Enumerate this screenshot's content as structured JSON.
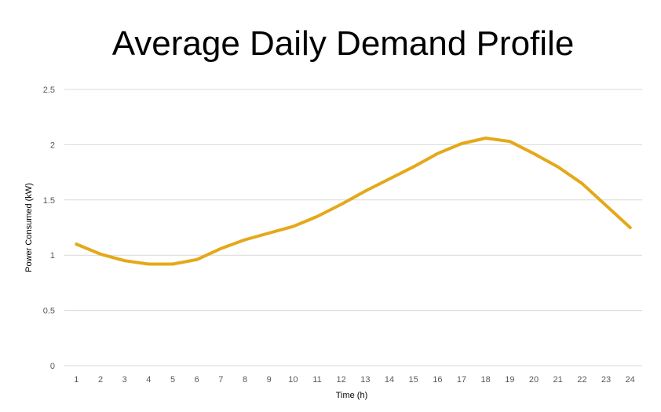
{
  "chart_data": {
    "type": "line",
    "title": "Average Daily Demand Profile",
    "xlabel": "Time (h)",
    "ylabel": "Power Consumed (kW)",
    "ylim": [
      0,
      2.5
    ],
    "yticks": [
      "0",
      "0.5",
      "1",
      "1.5",
      "2",
      "2.5"
    ],
    "x": [
      1,
      2,
      3,
      4,
      5,
      6,
      7,
      8,
      9,
      10,
      11,
      12,
      13,
      14,
      15,
      16,
      17,
      18,
      19,
      20,
      21,
      22,
      23,
      24
    ],
    "series": [
      {
        "color": "#E4A81A",
        "values": [
          1.1,
          1.01,
          0.95,
          0.92,
          0.92,
          0.96,
          1.06,
          1.14,
          1.2,
          1.26,
          1.35,
          1.46,
          1.58,
          1.69,
          1.8,
          1.92,
          2.01,
          2.06,
          2.03,
          1.92,
          1.8,
          1.65,
          1.45,
          1.25
        ]
      }
    ],
    "grid": true,
    "legend": "none"
  }
}
